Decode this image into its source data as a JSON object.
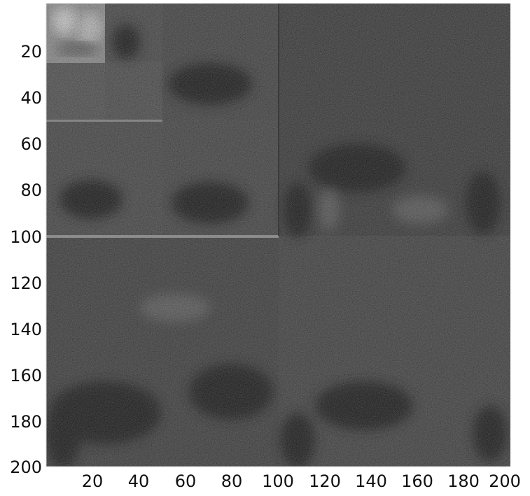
{
  "figure": {
    "description_type": "wavelet-decomposition image with axes",
    "x_ticks": [
      "20",
      "40",
      "60",
      "80",
      "100",
      "120",
      "140",
      "160",
      "180",
      "200"
    ],
    "y_ticks": [
      "20",
      "40",
      "60",
      "80",
      "100",
      "120",
      "140",
      "160",
      "180",
      "200"
    ],
    "x_range": [
      1,
      200
    ],
    "y_range": [
      1,
      200
    ],
    "colormap": "gray"
  }
}
